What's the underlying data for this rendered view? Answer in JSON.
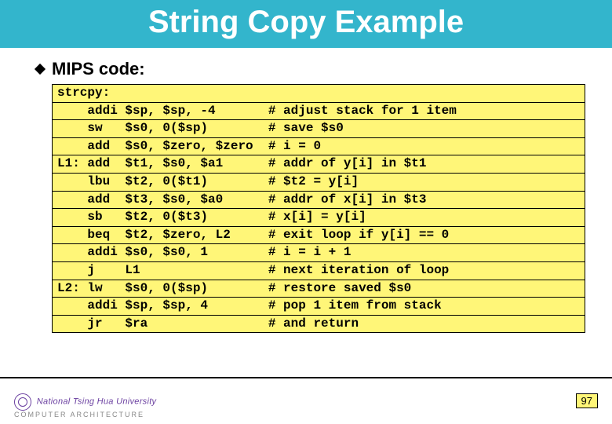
{
  "title": "String Copy Example",
  "subtitle": "MIPS code:",
  "code": {
    "background": "#fff678",
    "border": "#000000",
    "font": "Courier New",
    "lines": [
      "strcpy:",
      "    addi $sp, $sp, -4       # adjust stack for 1 item",
      "    sw   $s0, 0($sp)        # save $s0",
      "    add  $s0, $zero, $zero  # i = 0",
      "L1: add  $t1, $s0, $a1      # addr of y[i] in $t1",
      "    lbu  $t2, 0($t1)        # $t2 = y[i]",
      "    add  $t3, $s0, $a0      # addr of x[i] in $t3",
      "    sb   $t2, 0($t3)        # x[i] = y[i]",
      "    beq  $t2, $zero, L2     # exit loop if y[i] == 0",
      "    addi $s0, $s0, 1        # i = i + 1",
      "    j    L1                 # next iteration of loop",
      "L2: lw   $s0, 0($sp)        # restore saved $s0",
      "    addi $sp, $sp, 4        # pop 1 item from stack",
      "    jr   $ra                # and return"
    ]
  },
  "footer": {
    "university": "National Tsing Hua University",
    "department": "COMPUTER   ARCHITECTURE",
    "page_number": "97"
  },
  "colors": {
    "title_bg": "#33b5cc",
    "title_fg": "#ffffff",
    "code_bg": "#fff678",
    "text": "#000000",
    "logo": "#6a3fa0"
  }
}
